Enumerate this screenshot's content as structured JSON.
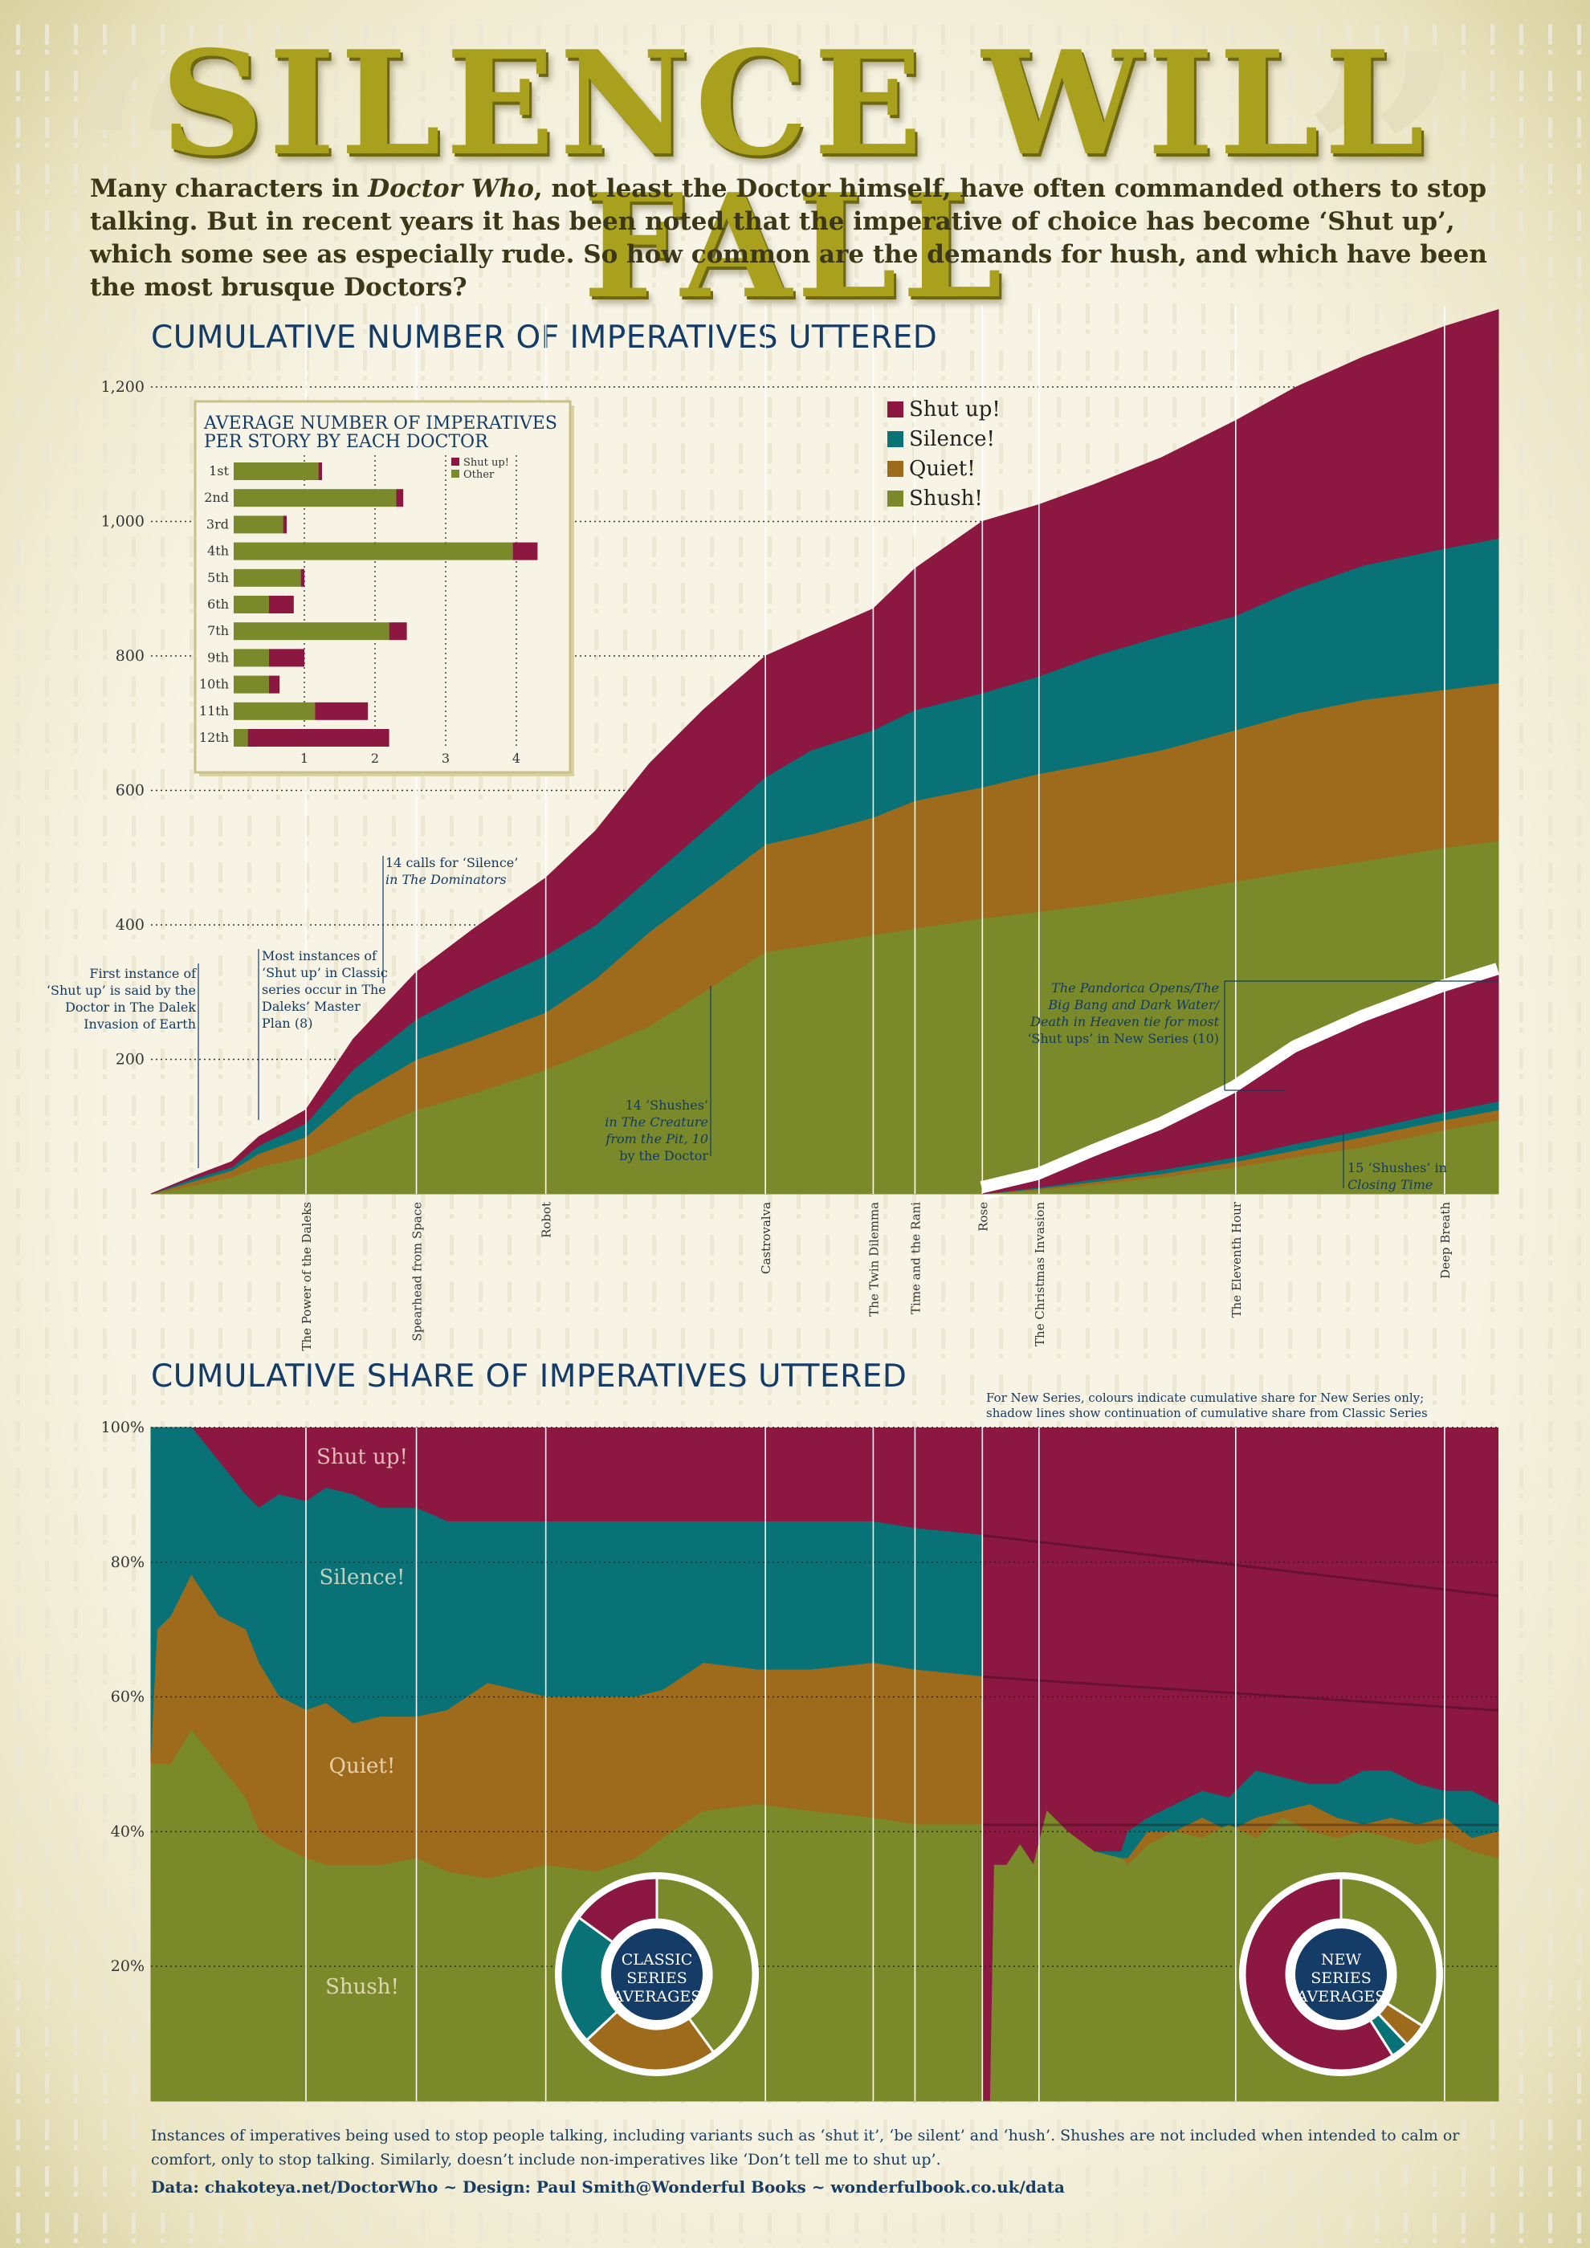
{
  "title": "SILENCE WILL FALL",
  "quote_open": "“",
  "quote_close": "”",
  "intro": {
    "part1": "Many characters in ",
    "italic": "Doctor Who",
    "part2": ", not least the Doctor himself, have often commanded others to stop talking. But in recent years it has been noted that the imperative of choice has become ‘Shut up’, which some see as especially rude. So how common are the demands for hush, and which have been the most brusque Doctors?"
  },
  "colors": {
    "shut_up": "#8c1740",
    "silence": "#087276",
    "quiet": "#9e6b1c",
    "shush": "#7a8a2a",
    "title": "#143c66",
    "navy": "#133b62"
  },
  "chart_data": [
    {
      "type": "area",
      "title": "CUMULATIVE NUMBER OF IMPERATIVES UTTERED",
      "stacked": true,
      "y_ticks": [
        "1,200",
        "1,000",
        "800",
        "600",
        "400",
        "200"
      ],
      "y_tick_values": [
        1200,
        1000,
        800,
        600,
        400,
        200
      ],
      "ylim": [
        0,
        1300
      ],
      "grid": "dotted horizontal",
      "legend": [
        "Shut up!",
        "Silence!",
        "Quiet!",
        "Shush!"
      ],
      "legend_position": "top-center",
      "x_index_range": [
        0,
        100
      ],
      "x_story_markers": [
        {
          "label": "The Power of the Daleks",
          "x": 11.5
        },
        {
          "label": "Spearhead from Space",
          "x": 19.7
        },
        {
          "label": "Robot",
          "x": 29.3
        },
        {
          "label": "Castrovalva",
          "x": 45.6
        },
        {
          "label": "The Twin Dilemma",
          "x": 53.6
        },
        {
          "label": "Time and the Rani",
          "x": 56.7
        },
        {
          "label": "Rose",
          "x": 61.7
        },
        {
          "label": "The Christmas Invasion",
          "x": 65.9
        },
        {
          "label": "The Eleventh Hour",
          "x": 80.5
        },
        {
          "label": "Deep Breath",
          "x": 96.0
        }
      ],
      "classic_series": {
        "x": [
          0,
          3,
          6,
          8,
          11.5,
          15,
          19.7,
          24,
          29.3,
          33,
          37,
          41,
          45.6,
          49,
          53.6,
          56.7,
          61.7
        ],
        "shush": [
          0,
          12,
          25,
          40,
          55,
          85,
          125,
          150,
          185,
          215,
          250,
          300,
          360,
          370,
          385,
          395,
          410
        ],
        "quiet": [
          0,
          18,
          35,
          60,
          85,
          145,
          200,
          230,
          270,
          320,
          390,
          450,
          520,
          535,
          560,
          585,
          605
        ],
        "silence": [
          0,
          22,
          40,
          72,
          105,
          185,
          260,
          305,
          355,
          400,
          470,
          540,
          620,
          660,
          690,
          720,
          745
        ],
        "shut_up": [
          0,
          25,
          48,
          85,
          125,
          230,
          330,
          395,
          470,
          540,
          640,
          720,
          800,
          830,
          870,
          930,
          1000
        ]
      },
      "new_series": {
        "x": [
          61.7,
          65.9,
          70,
          75,
          80.5,
          85,
          90,
          96,
          100
        ],
        "shush": [
          0,
          6,
          14,
          25,
          40,
          55,
          70,
          95,
          110
        ],
        "quiet": [
          0,
          8,
          18,
          30,
          48,
          65,
          85,
          110,
          125
        ],
        "silence": [
          0,
          10,
          22,
          36,
          55,
          75,
          95,
          122,
          138
        ],
        "shut_up": [
          0,
          20,
          55,
          95,
          150,
          210,
          255,
          300,
          325
        ]
      },
      "overall_totals": {
        "x": [
          61.7,
          65.9,
          70,
          75,
          80.5,
          85,
          90,
          96,
          100
        ],
        "shush": [
          410,
          420,
          430,
          445,
          465,
          480,
          495,
          515,
          525
        ],
        "quiet": [
          605,
          625,
          640,
          660,
          690,
          715,
          735,
          750,
          760
        ],
        "silence": [
          745,
          770,
          800,
          830,
          860,
          900,
          935,
          960,
          975
        ],
        "shut_up": [
          1000,
          1025,
          1055,
          1095,
          1150,
          1200,
          1245,
          1290,
          1315
        ]
      },
      "annotations": [
        {
          "text": "First instance of ‘Shut up’ is said by the Doctor in The Dalek Invasion of Earth",
          "lines": [
            "First instance of",
            "‘Shut up’ is said by the",
            "Doctor in The Dalek",
            "Invasion of Earth"
          ]
        },
        {
          "lines": [
            "Most instances of",
            "‘Shut up’ in Classic",
            "series occur in The",
            "Daleks’ Master",
            "Plan (8)"
          ]
        },
        {
          "lines": [
            "14 calls for ‘Silence’",
            "in The Dominators"
          ]
        },
        {
          "lines": [
            "14 ‘Shushes’",
            "in The Creature",
            "from the Pit, 10",
            "by the Doctor"
          ]
        },
        {
          "lines": [
            "The Pandorica Opens/The",
            "Big Bang and Dark Water/",
            "Death in Heaven tie for most",
            "‘Shut ups’ in New Series (10)"
          ]
        },
        {
          "lines": [
            "15 ‘Shushes’ in",
            "Closing Time"
          ]
        }
      ]
    },
    {
      "type": "bar",
      "title_lines": [
        "AVERAGE NUMBER OF IMPERATIVES",
        "PER STORY BY EACH DOCTOR"
      ],
      "stacked": true,
      "orientation": "horizontal",
      "categories": [
        "1st",
        "2nd",
        "3rd",
        "4th",
        "5th",
        "6th",
        "7th",
        "9th",
        "10th",
        "11th",
        "12th"
      ],
      "series": [
        {
          "name": "Other",
          "values": [
            1.2,
            2.3,
            0.7,
            3.95,
            0.95,
            0.5,
            2.2,
            0.5,
            0.5,
            1.15,
            0.2
          ]
        },
        {
          "name": "Shut up!",
          "values": [
            0.05,
            0.1,
            0.05,
            0.35,
            0.05,
            0.35,
            0.25,
            0.5,
            0.15,
            0.75,
            2.0
          ]
        }
      ],
      "x_ticks": [
        "1",
        "2",
        "3",
        "4"
      ],
      "xlim": [
        0,
        4.8
      ],
      "legend": [
        "Shut up!",
        "Other"
      ],
      "legend_position": "top-right"
    },
    {
      "type": "area",
      "title": "CUMULATIVE SHARE OF IMPERATIVES UTTERED",
      "stacked": true,
      "y_ticks": [
        "100%",
        "80%",
        "60%",
        "40%",
        "20%"
      ],
      "y_tick_values": [
        100,
        80,
        60,
        40,
        20
      ],
      "ylim": [
        0,
        100
      ],
      "note_lines": [
        "For New Series, colours indicate cumulative share for New Series only;",
        "shadow lines show continuation of cumulative share from Classic Series"
      ],
      "series_labels": [
        "Shut up!",
        "Silence!",
        "Quiet!",
        "Shush!"
      ],
      "classic_series": {
        "x": [
          0,
          0.5,
          1.5,
          3,
          5,
          7,
          8,
          9.5,
          11.5,
          13,
          15,
          17,
          19.7,
          22,
          25,
          29.3,
          33,
          36,
          38,
          41,
          45,
          49,
          53.6,
          56.7,
          61.7
        ],
        "shush": [
          50,
          50,
          50,
          55,
          50,
          45,
          40,
          38,
          36,
          35,
          35,
          35,
          36,
          34,
          33,
          35,
          34,
          36,
          39,
          43,
          44,
          43,
          42,
          41,
          41
        ],
        "quiet": [
          50,
          70,
          72,
          78,
          72,
          70,
          65,
          60,
          58,
          59,
          56,
          57,
          57,
          58,
          62,
          60,
          60,
          60,
          61,
          65,
          64,
          64,
          65,
          64,
          63
        ],
        "silence": [
          100,
          100,
          100,
          100,
          95,
          90,
          88,
          90,
          89,
          91,
          90,
          88,
          88,
          86,
          86,
          86,
          86,
          86,
          86,
          86,
          86,
          86,
          86,
          85,
          84
        ]
      },
      "new_series": {
        "x": [
          61.7,
          62.3,
          62.6,
          63.5,
          64.5,
          65.5,
          66.5,
          68,
          70,
          72,
          72.5,
          74,
          76,
          78,
          80,
          82,
          84,
          86,
          88,
          90,
          92,
          94,
          96,
          98,
          100
        ],
        "shush": [
          0,
          0,
          35,
          35,
          38,
          35,
          43,
          40,
          37,
          36,
          35,
          38,
          40,
          39,
          41,
          39,
          42,
          40,
          39,
          40,
          39,
          38,
          39,
          37,
          36
        ],
        "quiet": [
          0,
          0,
          35,
          35,
          38,
          35,
          43,
          40,
          37,
          36,
          36,
          40,
          40,
          42,
          40,
          42,
          43,
          44,
          42,
          41,
          42,
          41,
          42,
          39,
          40
        ],
        "silence": [
          0,
          0,
          35,
          35,
          38,
          35,
          43,
          40,
          37,
          37,
          40,
          42,
          44,
          46,
          45,
          49,
          48,
          47,
          47,
          49,
          49,
          47,
          46,
          46,
          44
        ]
      },
      "classic_continuation": {
        "x": [
          61.7,
          100
        ],
        "shush": [
          41,
          41
        ],
        "quiet": [
          63,
          58
        ],
        "silence": [
          84,
          75
        ]
      },
      "donuts": [
        {
          "label_lines": [
            "CLASSIC",
            "SERIES",
            "AVERAGES"
          ],
          "slices": [
            {
              "name": "Shush!",
              "value": 40
            },
            {
              "name": "Quiet!",
              "value": 23
            },
            {
              "name": "Silence!",
              "value": 22
            },
            {
              "name": "Shut up!",
              "value": 15
            }
          ]
        },
        {
          "label_lines": [
            "NEW",
            "SERIES",
            "AVERAGES"
          ],
          "slices": [
            {
              "name": "Shush!",
              "value": 34
            },
            {
              "name": "Quiet!",
              "value": 4
            },
            {
              "name": "Silence!",
              "value": 3
            },
            {
              "name": "Shut up!",
              "value": 59
            }
          ]
        }
      ]
    }
  ],
  "footnote": "Instances of imperatives being used to stop people talking, including variants such as ‘shut it’, ‘be silent’ and ‘hush’. Shushes are not included when intended to calm or comfort, only to stop talking. Similarly, doesn’t include non-imperatives like ‘Don’t tell me to shut up’.",
  "credits": "Data: chakoteya.net/DoctorWho ~ Design: Paul Smith@Wonderful Books ~ wonderfulbook.co.uk/data"
}
